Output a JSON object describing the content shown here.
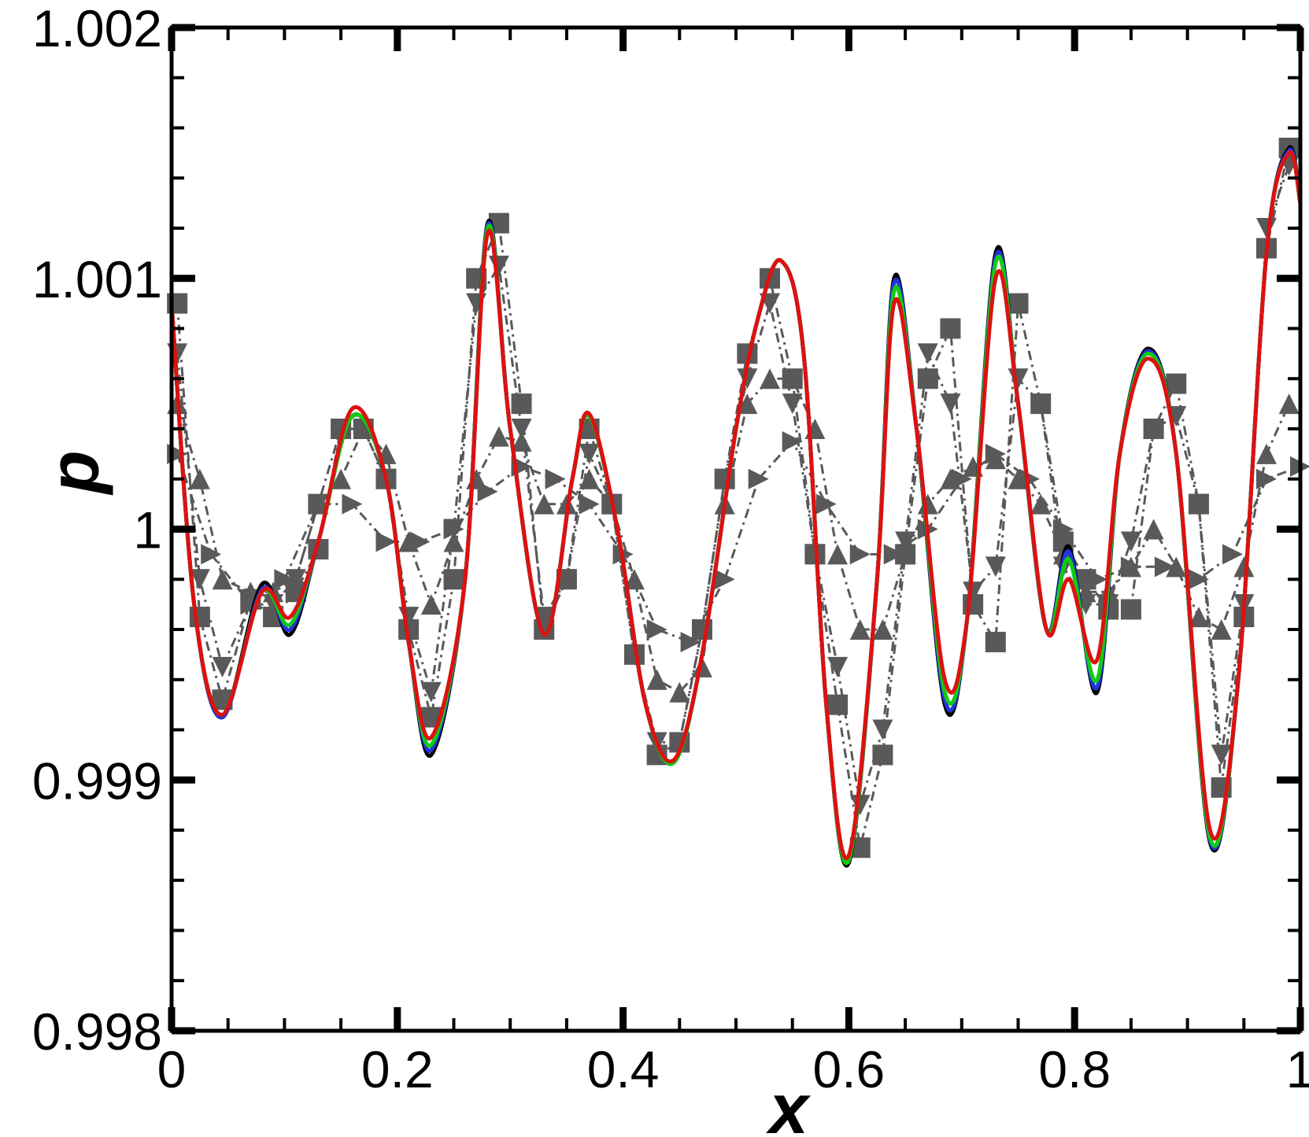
{
  "chart_data": {
    "type": "line",
    "xlabel": "x",
    "ylabel": "p",
    "xlim": [
      0,
      1
    ],
    "ylim": [
      0.998,
      1.002
    ],
    "x_ticks": [
      "0",
      "0.2",
      "0.4",
      "0.6",
      "0.8",
      "1"
    ],
    "y_ticks": [
      "0.998",
      "0.999",
      "1",
      "1.001",
      "1.002"
    ],
    "grid": false,
    "colors": {
      "black": "#000000",
      "blue": "#2233dd",
      "green": "#11cc11",
      "red": "#dd1111",
      "markers": "#595959"
    },
    "series": [
      {
        "style": "line",
        "color": "black",
        "x": [
          0.0,
          0.02,
          0.045,
          0.08,
          0.105,
          0.13,
          0.16,
          0.19,
          0.21,
          0.23,
          0.26,
          0.28,
          0.3,
          0.33,
          0.355,
          0.37,
          0.395,
          0.42,
          0.445,
          0.47,
          0.5,
          0.52,
          0.54,
          0.56,
          0.58,
          0.6,
          0.625,
          0.64,
          0.66,
          0.685,
          0.705,
          0.73,
          0.75,
          0.775,
          0.795,
          0.82,
          0.84,
          0.865,
          0.89,
          0.92,
          0.945,
          0.97,
          0.99,
          1.0
        ],
        "y": [
          1.0009,
          0.9997,
          0.99925,
          0.99978,
          0.99958,
          0.99995,
          1.00045,
          1.0002,
          0.99955,
          0.9991,
          0.9998,
          1.00122,
          1.0004,
          0.99958,
          1.0002,
          1.00045,
          1.0,
          0.9993,
          0.99907,
          0.9995,
          1.0004,
          1.00085,
          1.00107,
          1.0007,
          0.9993,
          0.99867,
          0.9998,
          1.001,
          1.0004,
          0.9993,
          0.99965,
          1.0011,
          1.0005,
          0.9996,
          0.99993,
          0.99935,
          1.0003,
          1.00072,
          1.0003,
          0.99875,
          0.9994,
          1.0011,
          1.00152,
          1.0013
        ]
      },
      {
        "style": "line",
        "color": "blue",
        "x": [
          0.0,
          0.02,
          0.045,
          0.08,
          0.105,
          0.13,
          0.16,
          0.19,
          0.21,
          0.23,
          0.26,
          0.28,
          0.3,
          0.33,
          0.355,
          0.37,
          0.395,
          0.42,
          0.445,
          0.47,
          0.5,
          0.52,
          0.54,
          0.56,
          0.58,
          0.6,
          0.625,
          0.64,
          0.66,
          0.685,
          0.705,
          0.73,
          0.75,
          0.775,
          0.795,
          0.82,
          0.84,
          0.865,
          0.89,
          0.92,
          0.945,
          0.97,
          0.99,
          1.0
        ],
        "y": [
          1.0009,
          0.9997,
          0.99925,
          0.99976,
          0.9996,
          0.99995,
          1.00045,
          1.0002,
          0.99955,
          0.99912,
          0.9998,
          1.00121,
          1.0004,
          0.99958,
          1.0002,
          1.00045,
          1.0,
          0.9993,
          0.99907,
          0.9995,
          1.0004,
          1.00085,
          1.00107,
          1.0007,
          0.9993,
          0.99868,
          0.9998,
          1.00098,
          1.0004,
          0.99932,
          0.99965,
          1.00108,
          1.0005,
          0.9996,
          0.99991,
          0.99937,
          1.0003,
          1.00071,
          1.0003,
          0.99876,
          0.9994,
          1.0011,
          1.00151,
          1.0013
        ]
      },
      {
        "style": "line",
        "color": "green",
        "x": [
          0.0,
          0.02,
          0.045,
          0.08,
          0.105,
          0.13,
          0.16,
          0.19,
          0.21,
          0.23,
          0.26,
          0.28,
          0.3,
          0.33,
          0.355,
          0.37,
          0.395,
          0.42,
          0.445,
          0.47,
          0.5,
          0.52,
          0.54,
          0.56,
          0.58,
          0.6,
          0.625,
          0.64,
          0.66,
          0.685,
          0.705,
          0.73,
          0.75,
          0.775,
          0.795,
          0.82,
          0.84,
          0.865,
          0.89,
          0.92,
          0.945,
          0.97,
          0.99,
          1.0
        ],
        "y": [
          1.0009,
          0.9997,
          0.99926,
          0.99975,
          0.99962,
          0.99995,
          1.00045,
          1.0002,
          0.99955,
          0.99914,
          0.9998,
          1.0012,
          1.0004,
          0.99958,
          1.0002,
          1.00045,
          1.0,
          0.9993,
          0.99907,
          0.9995,
          1.0004,
          1.00085,
          1.00107,
          1.0007,
          0.9993,
          0.99868,
          0.9998,
          1.00095,
          1.0004,
          0.99935,
          0.99965,
          1.00106,
          1.0005,
          0.9996,
          0.99988,
          0.9994,
          1.0003,
          1.0007,
          1.0003,
          0.99877,
          0.9994,
          1.0011,
          1.0015,
          1.0013
        ]
      },
      {
        "style": "line",
        "color": "red",
        "x": [
          0.0,
          0.02,
          0.045,
          0.08,
          0.105,
          0.13,
          0.16,
          0.19,
          0.21,
          0.23,
          0.26,
          0.28,
          0.3,
          0.33,
          0.355,
          0.37,
          0.395,
          0.42,
          0.445,
          0.47,
          0.5,
          0.52,
          0.54,
          0.56,
          0.58,
          0.6,
          0.625,
          0.64,
          0.66,
          0.685,
          0.705,
          0.73,
          0.75,
          0.775,
          0.795,
          0.82,
          0.84,
          0.865,
          0.89,
          0.92,
          0.945,
          0.97,
          0.99,
          1.0
        ],
        "y": [
          1.0009,
          0.9997,
          0.99926,
          0.99975,
          0.99965,
          0.99995,
          1.00048,
          1.0002,
          0.99955,
          0.99917,
          0.9998,
          1.00118,
          1.0004,
          0.99958,
          1.0002,
          1.00046,
          1.0,
          0.9993,
          0.99908,
          0.9995,
          1.0004,
          1.00085,
          1.00107,
          1.0007,
          0.9993,
          0.9987,
          0.9998,
          1.0009,
          1.0004,
          0.9994,
          0.99965,
          1.001,
          1.0005,
          0.9996,
          0.9998,
          0.99948,
          1.0003,
          1.00068,
          1.0003,
          0.9988,
          0.9994,
          1.0011,
          1.0015,
          1.0013
        ]
      },
      {
        "style": "markers",
        "marker": "square",
        "color": "markers",
        "x": [
          0.005,
          0.025,
          0.045,
          0.07,
          0.09,
          0.11,
          0.13,
          0.15,
          0.17,
          0.19,
          0.21,
          0.23,
          0.25,
          0.27,
          0.29,
          0.31,
          0.33,
          0.35,
          0.37,
          0.39,
          0.41,
          0.43,
          0.45,
          0.47,
          0.49,
          0.51,
          0.53,
          0.55,
          0.57,
          0.59,
          0.61,
          0.63,
          0.65,
          0.67,
          0.69,
          0.71,
          0.73,
          0.75,
          0.77,
          0.79,
          0.81,
          0.83,
          0.85,
          0.87,
          0.89,
          0.91,
          0.93,
          0.95,
          0.97,
          0.99
        ],
        "y": [
          1.0009,
          0.99965,
          0.99932,
          0.99972,
          0.99965,
          0.99975,
          0.99992,
          1.0004,
          1.0004,
          1.0002,
          0.9996,
          0.99925,
          0.9998,
          1.001,
          1.00122,
          1.0005,
          0.9996,
          0.9998,
          1.0004,
          1.0001,
          0.9995,
          0.9991,
          0.99915,
          0.9996,
          1.0002,
          1.0007,
          1.001,
          1.0006,
          0.9999,
          0.9993,
          0.99873,
          0.9991,
          0.9999,
          1.0006,
          1.0008,
          0.9997,
          0.99955,
          1.0009,
          1.0005,
          0.99995,
          0.9998,
          0.99968,
          0.99968,
          1.0004,
          1.00058,
          1.0001,
          0.99897,
          0.99965,
          1.00112,
          1.00152
        ]
      },
      {
        "style": "markers",
        "marker": "triangle-up",
        "color": "markers",
        "x": [
          0.005,
          0.025,
          0.045,
          0.07,
          0.09,
          0.11,
          0.13,
          0.15,
          0.17,
          0.19,
          0.21,
          0.23,
          0.25,
          0.27,
          0.29,
          0.31,
          0.33,
          0.35,
          0.37,
          0.39,
          0.41,
          0.43,
          0.45,
          0.47,
          0.49,
          0.51,
          0.53,
          0.55,
          0.57,
          0.59,
          0.61,
          0.63,
          0.65,
          0.67,
          0.69,
          0.71,
          0.73,
          0.75,
          0.77,
          0.79,
          0.81,
          0.83,
          0.85,
          0.87,
          0.89,
          0.91,
          0.93,
          0.95,
          0.97,
          0.99
        ],
        "y": [
          1.0005,
          1.0002,
          0.9998,
          0.99975,
          0.99975,
          0.9998,
          1.0001,
          1.0002,
          1.0004,
          1.0003,
          0.99995,
          0.9997,
          0.99995,
          1.0002,
          1.00037,
          1.00035,
          1.0001,
          1.0001,
          1.0002,
          1.0001,
          0.9998,
          0.9994,
          0.99935,
          0.99945,
          1.0001,
          1.0005,
          1.0006,
          1.0006,
          1.0004,
          0.9999,
          0.9996,
          0.9996,
          0.9999,
          1.0001,
          1.0002,
          1.00025,
          1.00028,
          1.0002,
          1.0001,
          0.9999,
          0.99975,
          0.99975,
          0.99985,
          1.0,
          0.99985,
          0.99965,
          0.9996,
          0.99985,
          1.0003,
          1.0005
        ]
      },
      {
        "style": "markers",
        "marker": "triangle-down",
        "color": "markers",
        "x": [
          0.005,
          0.025,
          0.045,
          0.07,
          0.09,
          0.11,
          0.13,
          0.15,
          0.17,
          0.19,
          0.21,
          0.23,
          0.25,
          0.27,
          0.29,
          0.31,
          0.33,
          0.35,
          0.37,
          0.39,
          0.41,
          0.43,
          0.45,
          0.47,
          0.49,
          0.51,
          0.53,
          0.55,
          0.57,
          0.59,
          0.61,
          0.63,
          0.65,
          0.67,
          0.69,
          0.71,
          0.73,
          0.75,
          0.77,
          0.79,
          0.81,
          0.83,
          0.85,
          0.87,
          0.89,
          0.91,
          0.93,
          0.95,
          0.97,
          0.99
        ],
        "y": [
          1.0007,
          0.9998,
          0.99945,
          0.9997,
          0.9997,
          0.9998,
          1.0001,
          1.0004,
          1.0004,
          1.0002,
          0.99965,
          0.99935,
          1.0,
          1.0009,
          1.00105,
          1.0004,
          0.99965,
          0.9998,
          1.0003,
          1.0001,
          0.9995,
          0.99915,
          0.99915,
          0.9996,
          1.0002,
          1.0006,
          1.0009,
          1.0005,
          0.9999,
          0.99945,
          0.9989,
          0.9992,
          0.99995,
          1.0007,
          1.0005,
          0.99975,
          0.99985,
          1.0006,
          1.0005,
          0.99985,
          0.9997,
          0.9997,
          0.99995,
          1.0004,
          1.00045,
          1.0001,
          0.9991,
          0.9997,
          1.0012,
          1.00145
        ]
      },
      {
        "style": "markers",
        "marker": "triangle-right",
        "color": "markers",
        "x": [
          0.005,
          0.035,
          0.07,
          0.1,
          0.13,
          0.16,
          0.19,
          0.22,
          0.25,
          0.28,
          0.31,
          0.34,
          0.37,
          0.4,
          0.43,
          0.46,
          0.49,
          0.52,
          0.55,
          0.58,
          0.61,
          0.64,
          0.67,
          0.7,
          0.73,
          0.76,
          0.79,
          0.82,
          0.85,
          0.88,
          0.91,
          0.94,
          0.97,
          1.0
        ],
        "y": [
          1.0003,
          0.9999,
          0.9997,
          0.9998,
          1.0001,
          1.0001,
          0.99995,
          0.99995,
          1.0,
          1.00015,
          1.00025,
          1.0002,
          1.0001,
          0.9999,
          0.9996,
          0.99955,
          0.9998,
          1.0002,
          1.00035,
          1.0001,
          0.9999,
          0.9999,
          1.0,
          1.0002,
          1.0003,
          1.0002,
          1.0,
          0.9998,
          0.99985,
          0.99985,
          0.9998,
          0.9999,
          1.0002,
          1.00025
        ]
      }
    ]
  }
}
